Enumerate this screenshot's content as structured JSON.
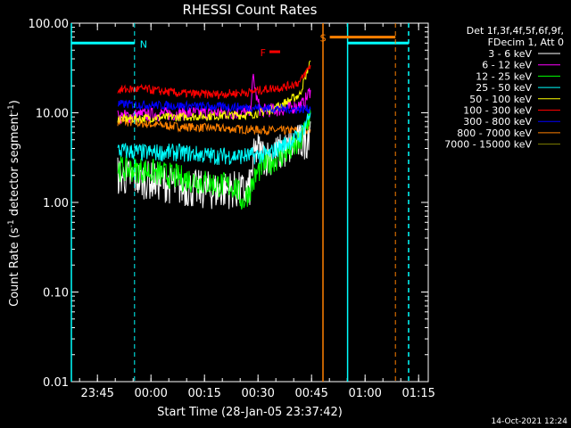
{
  "chart_data": {
    "type": "line",
    "title": "RHESSI Count Rates",
    "xlabel": "Start Time (28-Jan-05 23:37:42)",
    "ylabel_parts": [
      "Count Rate (s",
      "-1",
      " detector segment",
      "-1",
      ")"
    ],
    "y_scale": "log",
    "ylim": [
      0.01,
      100
    ],
    "xlim_minutes_from_start": [
      0,
      100
    ],
    "y_ticks": [
      {
        "value": 100,
        "label": "100.00"
      },
      {
        "value": 10,
        "label": "10.00"
      },
      {
        "value": 1,
        "label": "1.00"
      },
      {
        "value": 0.1,
        "label": "0.10"
      },
      {
        "value": 0.01,
        "label": "0.01"
      }
    ],
    "x_ticks": [
      {
        "value": 7.3,
        "label": "23:45"
      },
      {
        "value": 22.3,
        "label": "00:00"
      },
      {
        "value": 37.3,
        "label": "00:15"
      },
      {
        "value": 52.3,
        "label": "00:30"
      },
      {
        "value": 67.3,
        "label": "00:45"
      },
      {
        "value": 82.3,
        "label": "01:00"
      },
      {
        "value": 97.3,
        "label": "01:15"
      }
    ],
    "legend": {
      "header": [
        "Det 1f,3f,4f,5f,6f,9f,",
        "FDecim 1, Att 0"
      ],
      "placement": "right"
    },
    "series": [
      {
        "name": "3 - 6 keV",
        "color": "#ffffff",
        "points": [
          [
            13,
            2.0
          ],
          [
            20,
            1.8
          ],
          [
            25,
            1.7
          ],
          [
            30,
            1.5
          ],
          [
            35,
            1.4
          ],
          [
            40,
            1.35
          ],
          [
            45,
            1.4
          ],
          [
            48,
            1.3
          ],
          [
            50,
            1.45
          ],
          [
            51,
            3.0
          ],
          [
            52,
            4.0
          ],
          [
            53,
            3.5
          ],
          [
            55,
            3.2
          ],
          [
            60,
            3.8
          ],
          [
            63,
            4.5
          ],
          [
            66,
            5.0
          ],
          [
            67,
            8.0
          ]
        ],
        "noise": 0.22
      },
      {
        "name": "6 - 12 keV",
        "color": "#ff00ff",
        "points": [
          [
            13,
            9.0
          ],
          [
            20,
            9.5
          ],
          [
            30,
            9.8
          ],
          [
            40,
            10.0
          ],
          [
            50,
            10.0
          ],
          [
            51,
            25.0
          ],
          [
            52,
            14.0
          ],
          [
            53,
            10.5
          ],
          [
            60,
            11.0
          ],
          [
            65,
            12.5
          ],
          [
            67,
            18.0
          ]
        ],
        "noise": 0.08
      },
      {
        "name": "12 - 25 keV",
        "color": "#00ff00",
        "points": [
          [
            13,
            2.4
          ],
          [
            20,
            2.3
          ],
          [
            30,
            1.9
          ],
          [
            40,
            1.6
          ],
          [
            46,
            1.5
          ],
          [
            48,
            1.0
          ],
          [
            50,
            1.4
          ],
          [
            53,
            2.5
          ],
          [
            60,
            3.5
          ],
          [
            64,
            4.5
          ],
          [
            67,
            10.0
          ]
        ],
        "noise": 0.15
      },
      {
        "name": "25 - 50 keV",
        "color": "#00ffff",
        "points": [
          [
            13,
            3.8
          ],
          [
            20,
            3.6
          ],
          [
            30,
            3.6
          ],
          [
            40,
            3.3
          ],
          [
            50,
            3.3
          ],
          [
            55,
            3.4
          ],
          [
            60,
            4.5
          ],
          [
            64,
            5.5
          ],
          [
            67,
            10.0
          ]
        ],
        "noise": 0.1
      },
      {
        "name": "50 - 100 keV",
        "color": "#ffff00",
        "points": [
          [
            13,
            8.5
          ],
          [
            30,
            9.0
          ],
          [
            50,
            9.5
          ],
          [
            55,
            10.5
          ],
          [
            60,
            13.0
          ],
          [
            64,
            16.0
          ],
          [
            67,
            38.0
          ]
        ],
        "noise": 0.05
      },
      {
        "name": "100 - 300 keV",
        "color": "#ff0000",
        "points": [
          [
            13,
            18.0
          ],
          [
            20,
            18.5
          ],
          [
            30,
            16.5
          ],
          [
            40,
            16.0
          ],
          [
            50,
            17.0
          ],
          [
            55,
            18.5
          ],
          [
            60,
            19.5
          ],
          [
            64,
            22.0
          ],
          [
            67,
            34.0
          ]
        ],
        "noise": 0.05
      },
      {
        "name": "300 - 800 keV",
        "color": "#0000ff",
        "points": [
          [
            13,
            12.5
          ],
          [
            30,
            12.0
          ],
          [
            50,
            11.5
          ],
          [
            60,
            11.0
          ],
          [
            67,
            11.0
          ]
        ],
        "noise": 0.05
      },
      {
        "name": "800 - 7000 keV",
        "color": "#ff8000",
        "points": [
          [
            13,
            8.0
          ],
          [
            30,
            7.0
          ],
          [
            50,
            6.5
          ],
          [
            60,
            6.3
          ],
          [
            67,
            6.5
          ]
        ],
        "noise": 0.05
      },
      {
        "name": "7000 - 15000 keV",
        "color": "#808000",
        "points": [],
        "noise": 0
      }
    ],
    "annotations": [
      {
        "label": "N",
        "color": "#00ffff",
        "line_x": [
          0,
          17.7
        ],
        "level": 60,
        "dash_x": 17.7
      },
      {
        "label": "F",
        "color": "#ff0000",
        "line_x": [
          55.5,
          58.5
        ],
        "level": 48
      },
      {
        "label": "S",
        "color": "#ff8000",
        "line_x": [
          72.4,
          90.8
        ],
        "level": 70,
        "dash_x": 90.8
      }
    ],
    "vertical_lines": [
      {
        "x": 0,
        "color": "#00ffff",
        "style": "solid"
      },
      {
        "x": 70.5,
        "color": "#ff8000",
        "style": "solid"
      },
      {
        "x": 77.4,
        "color": "#00ffff",
        "style": "solid"
      },
      {
        "x": 94.5,
        "color": "#00ffff",
        "style": "dashed"
      }
    ],
    "cyan_attenuator_segment": {
      "x": [
        77.4,
        94.5
      ],
      "level": 60
    }
  },
  "timestamp": "14-Oct-2021 12:24"
}
